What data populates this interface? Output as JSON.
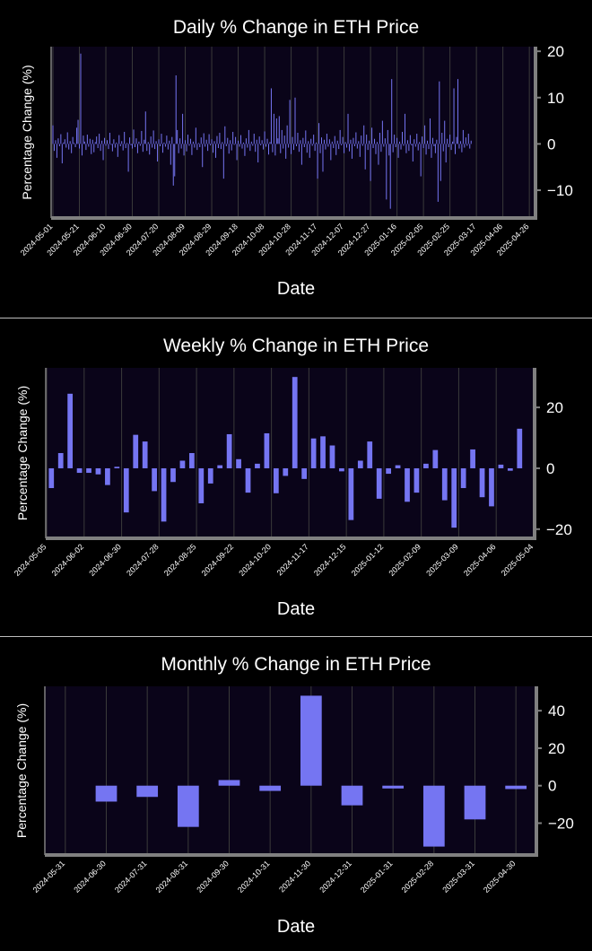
{
  "colors": {
    "background": "#000000",
    "plot_bg": "#0a0419",
    "bar": "#7575f2",
    "grid": "#3a3a3a",
    "axis": "#808080",
    "text": "#ffffff"
  },
  "chart_data": [
    {
      "type": "bar",
      "title": "Daily % Change in ETH Price",
      "xlabel": "Date",
      "ylabel": "Percentage Change (%)",
      "x_tick_labels": [
        "2024-05-01",
        "2024-05-21",
        "2024-06-10",
        "2024-06-30",
        "2024-07-20",
        "2024-08-09",
        "2024-08-29",
        "2024-09-18",
        "2024-10-08",
        "2024-10-28",
        "2024-11-17",
        "2024-12-07",
        "2024-12-27",
        "2025-01-16",
        "2025-02-05",
        "2025-02-25",
        "2025-03-17",
        "2025-04-06",
        "2025-04-26"
      ],
      "y_ticks": [
        -10,
        0,
        10,
        20
      ],
      "ylim": [
        -16,
        21
      ],
      "x_range_days": [
        0,
        365
      ],
      "grid": true,
      "values": [
        4.0,
        -1.5,
        0.8,
        -3.0,
        1.2,
        -0.5,
        2.1,
        -4.2,
        0.3,
        1.0,
        -0.8,
        2.5,
        -1.2,
        0.6,
        -2.0,
        1.5,
        0.2,
        -0.7,
        3.5,
        5.2,
        -1.0,
        19.5,
        -2.5,
        1.8,
        0.5,
        -1.3,
        2.0,
        -0.6,
        1.1,
        -2.2,
        0.9,
        -1.8,
        0.4,
        1.6,
        -0.9,
        2.2,
        -1.5,
        0.7,
        -3.5,
        1.3,
        -0.4,
        0.8,
        -1.1,
        2.4,
        -0.2,
        -1.6,
        1.0,
        -0.8,
        0.3,
        -2.8,
        1.9,
        -0.5,
        0.6,
        -1.4,
        2.6,
        -0.9,
        0.2,
        -6.0,
        1.4,
        -0.3,
        -1.0,
        3.1,
        -0.7,
        1.2,
        -2.0,
        0.5,
        -0.4,
        2.8,
        -1.7,
        0.9,
        7.0,
        -1.5,
        0.4,
        -2.3,
        1.6,
        -0.8,
        2.9,
        -1.1,
        0.6,
        -3.8,
        1.0,
        -0.5,
        2.2,
        -1.9,
        0.3,
        -0.6,
        1.8,
        -1.2,
        0.7,
        -4.5,
        1.5,
        -9.0,
        -7.0,
        14.8,
        3.0,
        -2.0,
        1.2,
        -1.0,
        6.5,
        -2.5,
        0.8,
        -1.6,
        2.0,
        -0.4,
        1.1,
        -2.4,
        0.5,
        -0.8,
        3.5,
        -1.3,
        0.2,
        -0.7,
        1.4,
        -5.0,
        2.3,
        -0.6,
        0.9,
        -1.5,
        2.1,
        -0.3,
        1.0,
        -1.9,
        0.6,
        -3.0,
        1.7,
        -0.9,
        2.4,
        -1.1,
        0.4,
        -7.5,
        3.8,
        -0.5,
        1.3,
        -2.1,
        0.8,
        -1.4,
        2.6,
        -0.2,
        1.5,
        -3.5,
        0.7,
        -0.6,
        1.9,
        -1.0,
        0.3,
        -2.6,
        1.2,
        -0.8,
        3.0,
        -1.5,
        0.5,
        -0.4,
        2.2,
        -1.7,
        0.9,
        -4.0,
        1.6,
        -0.3,
        0.8,
        -1.2,
        2.7,
        -0.6,
        1.1,
        -2.3,
        0.4,
        12.0,
        -1.8,
        6.5,
        -2.5,
        5.5,
        1.2,
        6.0,
        -2.0,
        3.0,
        -1.0,
        1.8,
        -3.2,
        4.0,
        -0.8,
        9.5,
        -2.2,
        1.5,
        -1.3,
        10.0,
        -0.5,
        2.4,
        -1.7,
        0.8,
        -4.5,
        1.3,
        -0.7,
        2.9,
        -1.9,
        0.6,
        -3.0,
        1.1,
        -0.4,
        2.0,
        -1.5,
        0.3,
        -7.5,
        4.5,
        -2.0,
        1.4,
        -6.0,
        0.9,
        -1.2,
        2.2,
        -0.6,
        1.0,
        -3.5,
        0.5,
        -0.9,
        1.7,
        -2.4,
        0.7,
        -1.1,
        3.0,
        -0.3,
        1.5,
        -2.0,
        0.4,
        -0.8,
        6.5,
        -1.6,
        0.9,
        -3.2,
        1.3,
        -0.5,
        2.5,
        -1.0,
        0.6,
        -2.8,
        1.8,
        -0.4,
        4.0,
        -5.5,
        2.0,
        -1.3,
        0.7,
        -8.0,
        3.5,
        -0.9,
        1.1,
        -2.2,
        0.4,
        -4.5,
        2.4,
        -1.7,
        5.0,
        -0.6,
        1.2,
        -12.0,
        3.0,
        -2.5,
        -14.0,
        14.0,
        -1.8,
        2.0,
        -0.7,
        1.3,
        -3.0,
        0.5,
        -1.2,
        2.6,
        -0.4,
        6.5,
        -2.0,
        0.8,
        -1.5,
        1.9,
        -0.3,
        -3.8,
        1.0,
        -0.6,
        2.2,
        -1.4,
        0.4,
        -7.0,
        1.6,
        -0.9,
        4.0,
        -2.3,
        0.7,
        -1.1,
        5.5,
        -3.0,
        1.3,
        -0.5,
        -2.0,
        0.9,
        -12.5,
        13.5,
        -8.0,
        2.4,
        -1.6,
        5.0,
        -4.0,
        1.1,
        -0.7,
        2.0,
        -1.3,
        0.5,
        12.0,
        -2.2,
        1.5,
        14.0,
        -1.0,
        0.6,
        -1.8,
        3.0,
        -0.8,
        1.4,
        -0.4,
        2.2,
        -1.0,
        0.7
      ]
    },
    {
      "type": "bar",
      "title": "Weekly % Change in ETH Price",
      "xlabel": "Date",
      "ylabel": "Percentage Change (%)",
      "x_tick_labels": [
        "2024-05-05",
        "2024-06-02",
        "2024-06-30",
        "2024-07-28",
        "2024-08-25",
        "2024-09-22",
        "2024-10-20",
        "2024-11-17",
        "2024-12-15",
        "2025-01-12",
        "2025-02-09",
        "2025-03-09",
        "2025-04-06",
        "2025-05-04"
      ],
      "y_ticks": [
        -20,
        0,
        20
      ],
      "ylim": [
        -23,
        33
      ],
      "grid": true,
      "values": [
        -6.5,
        5.0,
        24.5,
        -1.5,
        -1.5,
        -2.0,
        -5.5,
        0.5,
        -14.5,
        11.0,
        8.8,
        -7.5,
        -17.5,
        -4.5,
        2.5,
        5.0,
        -11.5,
        -5.0,
        1.0,
        11.2,
        3.0,
        -8.0,
        1.5,
        11.5,
        -8.2,
        -2.5,
        30.0,
        -3.5,
        9.8,
        10.5,
        7.5,
        -1.0,
        -17.0,
        2.5,
        8.8,
        -10.0,
        -1.8,
        1.0,
        -11.0,
        -8.0,
        1.5,
        6.0,
        -10.5,
        -19.5,
        -6.5,
        6.2,
        -9.5,
        -12.5,
        1.2,
        -0.8,
        13.0
      ]
    },
    {
      "type": "bar",
      "title": "Monthly % Change in ETH Price",
      "xlabel": "Date",
      "ylabel": "Percentage Change (%)",
      "categories": [
        "2024-05-31",
        "2024-06-30",
        "2024-07-31",
        "2024-08-31",
        "2024-09-30",
        "2024-10-31",
        "2024-11-30",
        "2024-12-31",
        "2025-01-31",
        "2025-02-28",
        "2025-03-31",
        "2025-04-30"
      ],
      "y_ticks": [
        -20,
        0,
        20,
        40
      ],
      "ylim": [
        -37,
        53
      ],
      "grid": true,
      "values": [
        0,
        -8.5,
        -6.0,
        -22.0,
        3.0,
        -2.8,
        48.0,
        -10.5,
        -1.5,
        -32.5,
        -18.0,
        -1.8
      ]
    }
  ]
}
